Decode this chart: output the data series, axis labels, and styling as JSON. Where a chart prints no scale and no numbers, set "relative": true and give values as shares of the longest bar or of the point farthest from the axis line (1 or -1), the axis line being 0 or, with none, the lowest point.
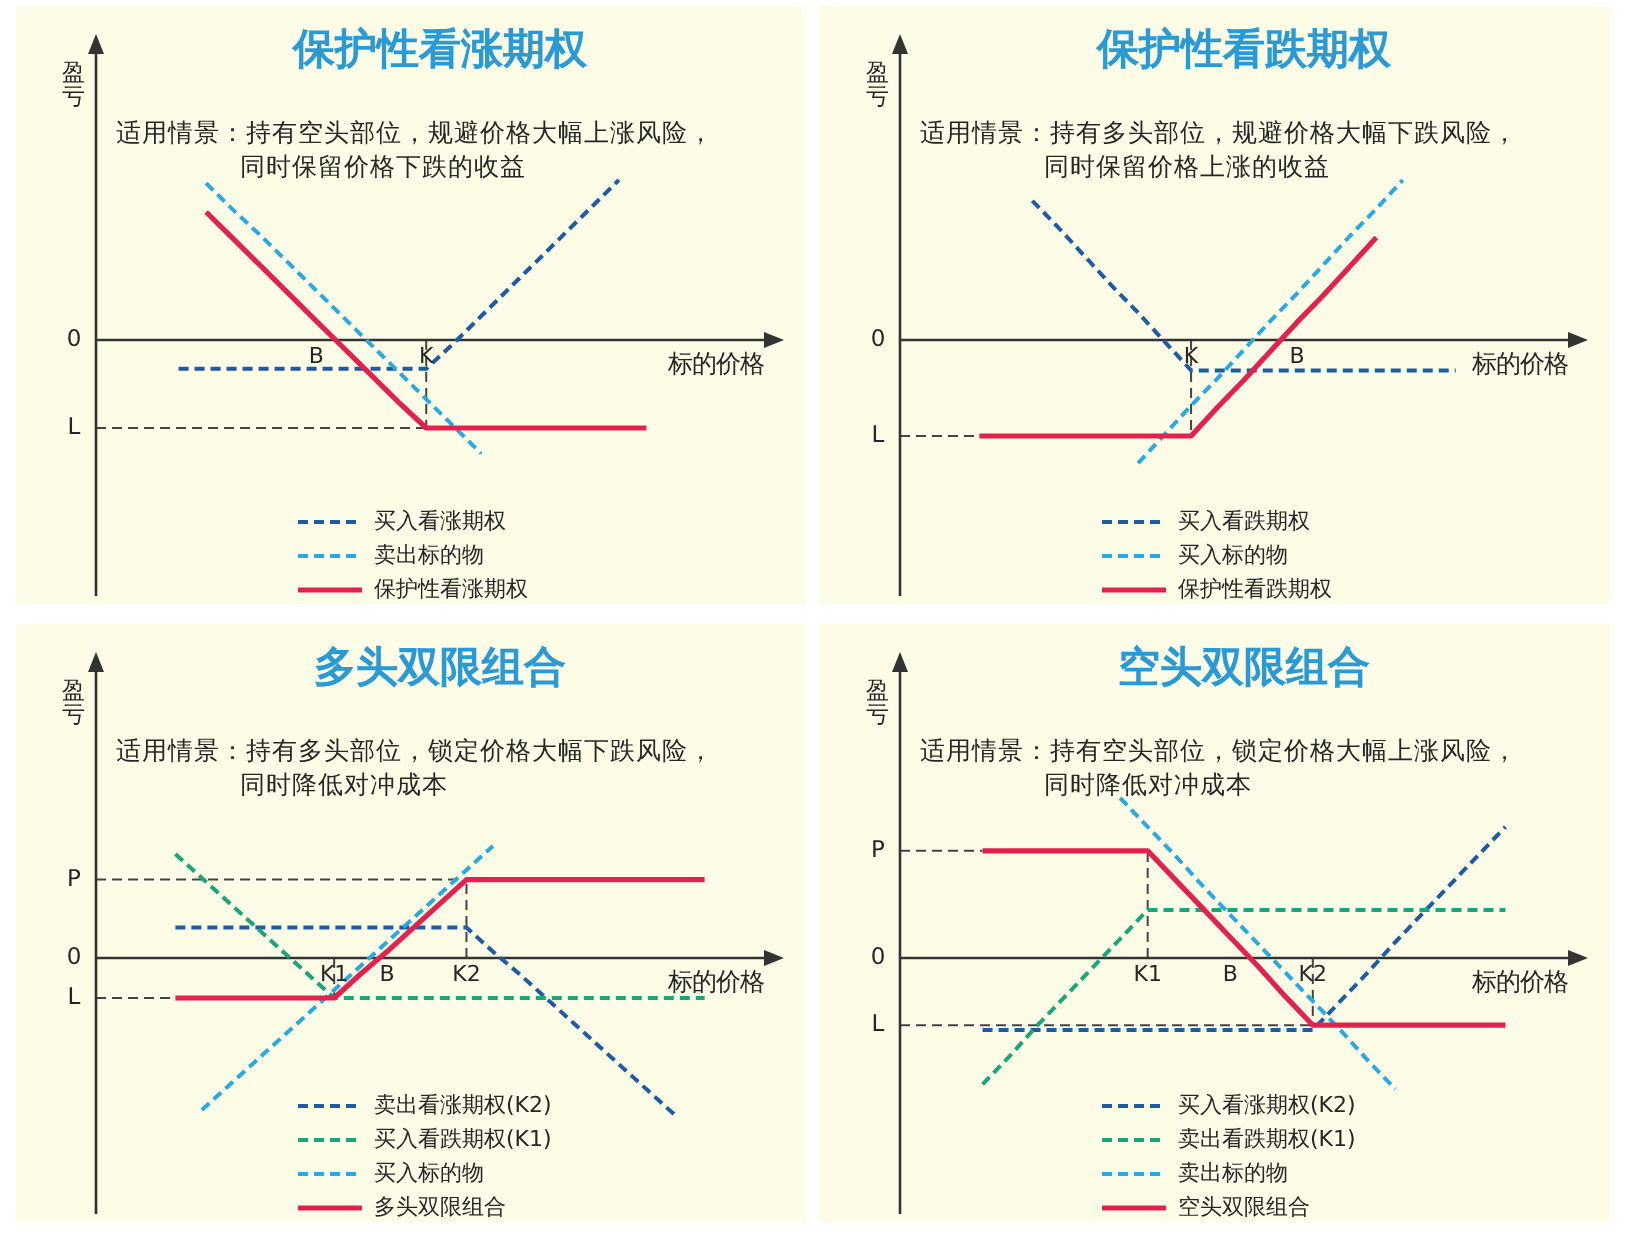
{
  "chart_data": [
    {
      "type": "line",
      "title": "保护性看涨期权",
      "subtitle": "适用情景：持有空头部位，规避价格大幅上涨风险，同时保留价格下跌的收益",
      "xlabel": "标的价格",
      "ylabel": "盈亏",
      "relative": true,
      "legend": "bottom",
      "categories": [
        null,
        null,
        null,
        null,
        null,
        null,
        null,
        null,
        "B",
        null,
        null,
        null,
        "K",
        null,
        null,
        null,
        null,
        null,
        null,
        null,
        null,
        null,
        null,
        null,
        null,
        null
      ],
      "series": [
        {
          "name": "买入看涨期权",
          "color": "#1d5ba4",
          "line_style": "dashed",
          "values": [
            null,
            null,
            null,
            -0.18,
            -0.18,
            -0.18,
            -0.18,
            -0.18,
            -0.18,
            -0.18,
            -0.18,
            -0.18,
            -0.18,
            -0.02,
            0.15,
            0.32,
            0.49,
            0.66,
            0.83,
            1,
            null,
            null,
            null,
            null,
            null,
            null
          ]
        },
        {
          "name": "卖出标的物",
          "color": "#2aa9e0",
          "line_style": "dashed",
          "values": [
            null,
            null,
            null,
            null,
            0.98,
            0.81,
            0.65,
            0.48,
            0.31,
            0.14,
            -0.03,
            -0.2,
            -0.37,
            -0.54,
            -0.71,
            null,
            null,
            null,
            null,
            null,
            null,
            null,
            null,
            null,
            null,
            null
          ]
        },
        {
          "name": "保护性看涨期权",
          "color": "#e3214f",
          "line_style": "solid",
          "values": [
            null,
            null,
            null,
            null,
            0.8,
            0.63,
            0.46,
            0.29,
            0.12,
            -0.05,
            -0.22,
            -0.39,
            -0.55,
            -0.55,
            -0.55,
            -0.55,
            -0.55,
            -0.55,
            -0.55,
            -0.55,
            -0.55,
            null,
            null,
            null,
            null,
            null
          ]
        }
      ],
      "ref_lines": [
        {
          "axis": "y",
          "value": -0.55,
          "label": "L",
          "color": "#444444",
          "line_style": "dashed"
        },
        {
          "axis": "x",
          "value": "K",
          "color": "#444444",
          "line_style": "dashed"
        }
      ],
      "annotations": [
        "0"
      ]
    },
    {
      "type": "line",
      "title": "保护性看跌期权",
      "subtitle": "适用情景：持有多头部位，规避价格大幅下跌风险，同时保留价格上涨的收益",
      "xlabel": "标的价格",
      "ylabel": "盈亏",
      "relative": true,
      "legend": "bottom",
      "categories": [
        null,
        null,
        null,
        null,
        null,
        null,
        null,
        null,
        null,
        null,
        null,
        "K",
        null,
        null,
        null,
        "B",
        null,
        null,
        null,
        null,
        null,
        null,
        null,
        null,
        null,
        null,
        null
      ],
      "series": [
        {
          "name": "买入看跌期权",
          "color": "#1d5ba4",
          "line_style": "dashed",
          "values": [
            null,
            null,
            null,
            null,
            null,
            0.87,
            0.7,
            0.52,
            0.34,
            0.17,
            -0.01,
            -0.19,
            -0.19,
            -0.19,
            -0.19,
            -0.19,
            -0.19,
            -0.19,
            -0.19,
            -0.19,
            -0.19,
            -0.19,
            null,
            null,
            null,
            null,
            null
          ]
        },
        {
          "name": "买入标的物",
          "color": "#2aa9e0",
          "line_style": "dashed",
          "values": [
            null,
            null,
            null,
            null,
            null,
            null,
            null,
            null,
            null,
            -0.77,
            -0.59,
            -0.41,
            -0.24,
            -0.06,
            0.12,
            0.29,
            0.47,
            0.65,
            0.82,
            1,
            null,
            null,
            null,
            null,
            null,
            null,
            null
          ]
        },
        {
          "name": "保护性看跌期权",
          "color": "#e3214f",
          "line_style": "solid",
          "values": [
            null,
            null,
            null,
            -0.6,
            -0.6,
            -0.6,
            -0.6,
            -0.6,
            -0.6,
            -0.6,
            -0.6,
            -0.6,
            -0.42,
            -0.25,
            -0.07,
            0.11,
            0.28,
            0.46,
            0.64,
            null,
            null,
            null,
            null,
            null,
            null,
            null,
            null
          ]
        }
      ],
      "ref_lines": [
        {
          "axis": "y",
          "value": -0.6,
          "label": "L",
          "color": "#444444",
          "line_style": "dashed"
        },
        {
          "axis": "x",
          "value": "K",
          "color": "#444444",
          "line_style": "dashed"
        }
      ],
      "annotations": [
        "0"
      ]
    },
    {
      "type": "line",
      "title": "多头双限组合",
      "subtitle": "适用情景：持有多头部位，锁定价格大幅下跌风险，同时降低对冲成本",
      "xlabel": "标的价格",
      "ylabel": "盈亏",
      "relative": true,
      "legend": "bottom",
      "categories": [
        null,
        null,
        null,
        null,
        null,
        null,
        null,
        null,
        null,
        "K1",
        null,
        "B",
        null,
        null,
        "K2",
        null,
        null,
        null,
        null,
        null,
        null,
        null,
        null,
        null,
        null,
        null,
        null
      ],
      "series": [
        {
          "name": "卖出看涨期权(K2)",
          "color": "#1d5ba4",
          "line_style": "dashed",
          "values": [
            null,
            null,
            null,
            0.19,
            0.19,
            0.19,
            0.19,
            0.19,
            0.19,
            0.19,
            0.19,
            0.19,
            0.19,
            0.19,
            0.19,
            0.04,
            -0.1,
            -0.25,
            -0.4,
            -0.55,
            -0.7,
            -0.85,
            -1,
            null,
            null,
            null,
            null
          ]
        },
        {
          "name": "买入看跌期权(K1)",
          "color": "#1aa57a",
          "line_style": "dashed",
          "values": [
            null,
            null,
            null,
            0.65,
            0.5,
            0.35,
            0.2,
            0.05,
            -0.1,
            -0.25,
            -0.25,
            -0.25,
            -0.25,
            -0.25,
            -0.25,
            -0.25,
            -0.25,
            -0.25,
            -0.25,
            -0.25,
            -0.25,
            -0.25,
            -0.25,
            -0.25,
            null,
            null,
            null
          ]
        },
        {
          "name": "买入标的物",
          "color": "#2aa9e0",
          "line_style": "dashed",
          "values": [
            null,
            null,
            null,
            null,
            -0.95,
            -0.8,
            -0.65,
            -0.5,
            -0.35,
            -0.2,
            -0.05,
            0.1,
            0.25,
            0.4,
            0.55,
            0.7,
            null,
            null,
            null,
            null,
            null,
            null,
            null,
            null,
            null,
            null,
            null
          ]
        },
        {
          "name": "多头双限组合",
          "color": "#e3214f",
          "line_style": "solid",
          "values": [
            null,
            null,
            null,
            -0.25,
            -0.25,
            -0.25,
            -0.25,
            -0.25,
            -0.25,
            -0.25,
            -0.1,
            0.04,
            0.19,
            0.34,
            0.49,
            0.49,
            0.49,
            0.49,
            0.49,
            0.49,
            0.49,
            0.49,
            0.49,
            0.49,
            null,
            null,
            null
          ]
        }
      ],
      "ref_lines": [
        {
          "axis": "y",
          "value": 0.49,
          "label": "P",
          "color": "#444444",
          "line_style": "dashed"
        },
        {
          "axis": "y",
          "value": -0.25,
          "label": "L",
          "color": "#444444",
          "line_style": "dashed"
        },
        {
          "axis": "x",
          "value": "K1",
          "color": "#444444",
          "line_style": "dashed"
        },
        {
          "axis": "x",
          "value": "K2",
          "color": "#444444",
          "line_style": "dashed"
        }
      ],
      "annotations": [
        "0"
      ]
    },
    {
      "type": "line",
      "title": "空头双限组合",
      "subtitle": "适用情景：持有空头部位，锁定价格大幅上涨风险，同时降低对冲成本",
      "xlabel": "标的价格",
      "ylabel": "盈亏",
      "relative": true,
      "legend": "bottom",
      "categories": [
        null,
        null,
        null,
        null,
        null,
        null,
        null,
        null,
        null,
        "K1",
        null,
        null,
        "B",
        null,
        null,
        "K2",
        null,
        null,
        null,
        null,
        null,
        null,
        null,
        null,
        null,
        null
      ],
      "series": [
        {
          "name": "买入看涨期权(K2)",
          "color": "#1d5ba4",
          "line_style": "dashed",
          "values": [
            null,
            null,
            null,
            -0.45,
            -0.45,
            -0.45,
            -0.45,
            -0.45,
            -0.45,
            -0.45,
            -0.45,
            -0.45,
            -0.45,
            -0.45,
            -0.45,
            -0.45,
            -0.27,
            -0.09,
            0.1,
            0.28,
            0.46,
            0.64,
            0.82,
            null,
            null,
            null
          ]
        },
        {
          "name": "卖出看跌期权(K1)",
          "color": "#1aa57a",
          "line_style": "dashed",
          "values": [
            null,
            null,
            null,
            -0.79,
            -0.61,
            -0.42,
            -0.24,
            -0.06,
            0.12,
            0.3,
            0.3,
            0.3,
            0.3,
            0.3,
            0.3,
            0.3,
            0.3,
            0.3,
            0.3,
            0.3,
            0.3,
            0.3,
            0.3,
            null,
            null,
            null
          ]
        },
        {
          "name": "卖出标的物",
          "color": "#2aa9e0",
          "line_style": "dashed",
          "values": [
            null,
            null,
            null,
            null,
            null,
            null,
            null,
            null,
            1,
            0.82,
            0.64,
            0.45,
            0.27,
            0.09,
            -0.09,
            -0.27,
            -0.45,
            -0.64,
            -0.82,
            null,
            null,
            null,
            null,
            null,
            null,
            null
          ]
        },
        {
          "name": "空头双限组合",
          "color": "#e3214f",
          "line_style": "solid",
          "values": [
            null,
            null,
            null,
            0.67,
            0.67,
            0.67,
            0.67,
            0.67,
            0.67,
            0.67,
            0.49,
            0.31,
            0.13,
            -0.05,
            -0.24,
            -0.42,
            -0.42,
            -0.42,
            -0.42,
            -0.42,
            -0.42,
            -0.42,
            -0.42,
            null,
            null,
            null
          ]
        }
      ],
      "ref_lines": [
        {
          "axis": "y",
          "value": 0.67,
          "label": "P",
          "color": "#444444",
          "line_style": "dashed"
        },
        {
          "axis": "y",
          "value": -0.42,
          "label": "L",
          "color": "#444444",
          "line_style": "dashed"
        },
        {
          "axis": "x",
          "value": "K1",
          "color": "#444444",
          "line_style": "dashed"
        },
        {
          "axis": "x",
          "value": "K2",
          "color": "#444444",
          "line_style": "dashed"
        }
      ],
      "annotations": [
        "0"
      ]
    }
  ]
}
